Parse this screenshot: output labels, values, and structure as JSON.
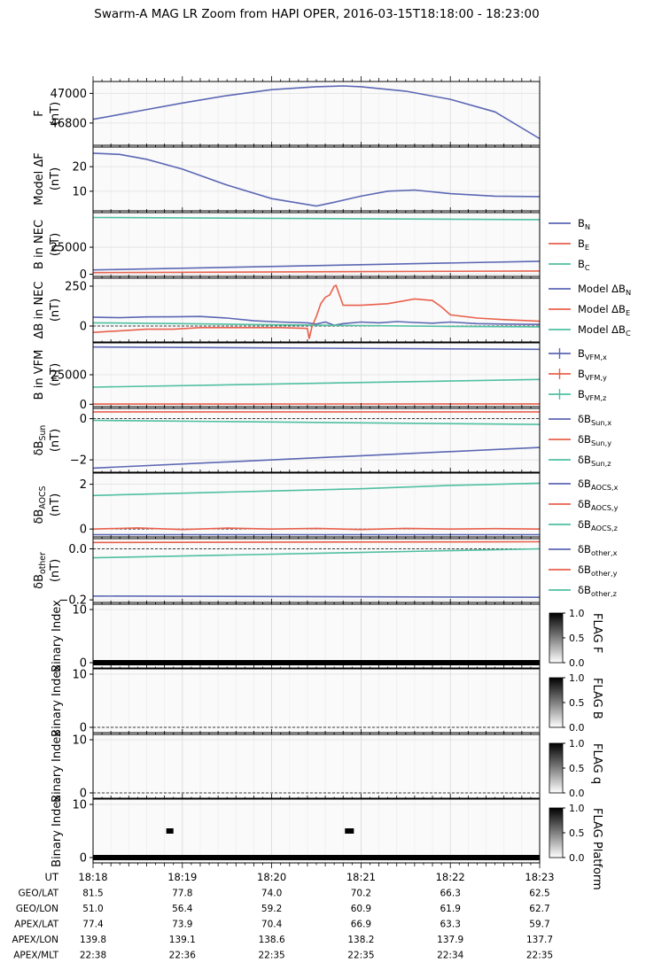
{
  "title": "Swarm-A MAG LR Zoom from HAPI OPER, 2016-03-15T18:18:00 - 18:23:00",
  "colors": {
    "blue": "#5b67b3",
    "red": "#e8604c",
    "teal": "#4fbfa0",
    "grid": "#dddddd"
  },
  "chart_data": [
    {
      "type": "line",
      "ylabel": [
        "F",
        "(nT)"
      ],
      "ylim": [
        46650,
        47080
      ],
      "yticks": [
        46800,
        47000
      ],
      "grid": true,
      "series": [
        {
          "color": "#5b67b3",
          "x": [
            0,
            0.5,
            1,
            1.5,
            2,
            2.5,
            2.8,
            3,
            3.5,
            4,
            4.5,
            5
          ],
          "y": [
            46825,
            46880,
            46935,
            46985,
            47025,
            47045,
            47050,
            47045,
            47015,
            46960,
            46875,
            46695
          ]
        }
      ]
    },
    {
      "type": "line",
      "ylabel": [
        "Model ΔF",
        "(nT)"
      ],
      "ylim": [
        2,
        28
      ],
      "yticks": [
        10,
        20
      ],
      "grid": true,
      "series": [
        {
          "color": "#5b67b3",
          "x": [
            0,
            0.3,
            0.6,
            1,
            1.5,
            2,
            2.5,
            2.7,
            3,
            3.3,
            3.6,
            4,
            4.5,
            5
          ],
          "y": [
            25.5,
            25,
            23,
            19,
            12.5,
            7,
            4,
            5.5,
            8,
            10,
            10.5,
            9,
            8,
            7.8
          ]
        }
      ]
    },
    {
      "type": "line",
      "ylabel": [
        "B in NEC",
        "(nT)"
      ],
      "ylim": [
        -2000,
        57000
      ],
      "yticks": [
        0,
        25000
      ],
      "grid": true,
      "legend": [
        "B_N",
        "B_E",
        "B_C"
      ],
      "series": [
        {
          "name": "B_N",
          "color": "#5b67b3",
          "x": [
            0,
            5
          ],
          "y": [
            4000,
            12000
          ]
        },
        {
          "name": "B_E",
          "color": "#e8604c",
          "x": [
            0,
            5
          ],
          "y": [
            1500,
            3000
          ]
        },
        {
          "name": "B_C",
          "color": "#4fbfa0",
          "x": [
            0,
            5
          ],
          "y": [
            52500,
            50500
          ]
        }
      ]
    },
    {
      "type": "line",
      "ylabel": [
        "ΔB in NEC",
        "(nT)"
      ],
      "ylim": [
        -100,
        300
      ],
      "yticks": [
        0,
        250
      ],
      "zero_line": true,
      "grid": true,
      "legend": [
        "Model ΔB_N",
        "Model ΔB_E",
        "Model ΔB_C"
      ],
      "series": [
        {
          "name": "Model ΔB_N",
          "color": "#5b67b3",
          "x": [
            0,
            0.3,
            0.6,
            0.9,
            1.2,
            1.5,
            1.8,
            2.1,
            2.4,
            2.5,
            2.6,
            2.7,
            2.8,
            3,
            3.2,
            3.4,
            3.6,
            3.8,
            4,
            4.3,
            4.6,
            5
          ],
          "y": [
            55,
            52,
            57,
            58,
            60,
            50,
            33,
            25,
            20,
            12,
            25,
            5,
            15,
            25,
            20,
            28,
            22,
            18,
            25,
            15,
            12,
            10
          ]
        },
        {
          "name": "Model ΔB_E",
          "color": "#e8604c",
          "x": [
            0,
            0.3,
            0.6,
            0.9,
            1.2,
            1.5,
            1.8,
            2.1,
            2.4,
            2.42,
            2.45,
            2.5,
            2.55,
            2.6,
            2.65,
            2.7,
            2.72,
            2.8,
            3,
            3.3,
            3.6,
            3.8,
            3.9,
            4,
            4.3,
            4.6,
            5
          ],
          "y": [
            -40,
            -30,
            -20,
            -20,
            -10,
            -10,
            -10,
            -10,
            -15,
            -80,
            -5,
            60,
            140,
            180,
            195,
            250,
            255,
            130,
            130,
            140,
            170,
            160,
            120,
            70,
            50,
            40,
            30
          ]
        },
        {
          "name": "Model ΔB_C",
          "color": "#4fbfa0",
          "x": [
            0,
            1,
            2,
            3,
            4,
            5
          ],
          "y": [
            20,
            15,
            8,
            3,
            -2,
            -5
          ]
        }
      ]
    },
    {
      "type": "line",
      "ylabel": [
        "B in VFM",
        "(nT)"
      ],
      "ylim": [
        -2000,
        52000
      ],
      "yticks": [
        0,
        25000
      ],
      "grid": true,
      "legend": [
        "B_VFM,x",
        "B_VFM,y",
        "B_VFM,z"
      ],
      "series": [
        {
          "name": "B_VFM,x",
          "color": "#5b67b3",
          "x": [
            0,
            5
          ],
          "y": [
            48500,
            46500
          ]
        },
        {
          "name": "B_VFM,y",
          "color": "#e8604c",
          "x": [
            0,
            5
          ],
          "y": [
            200,
            300
          ]
        },
        {
          "name": "B_VFM,z",
          "color": "#4fbfa0",
          "x": [
            0,
            5
          ],
          "y": [
            14500,
            21000
          ]
        }
      ]
    },
    {
      "type": "line",
      "ylabel": [
        "δB_Sun",
        "(nT)"
      ],
      "ylim": [
        -2.6,
        0.5
      ],
      "yticks": [
        -2,
        0
      ],
      "zero_line": true,
      "grid": true,
      "legend": [
        "δB_Sun,x",
        "δB_Sun,y",
        "δB_Sun,z"
      ],
      "series": [
        {
          "name": "δB_Sun,x",
          "color": "#5b67b3",
          "x": [
            0,
            5
          ],
          "y": [
            -2.4,
            -1.4
          ]
        },
        {
          "name": "δB_Sun,y",
          "color": "#e8604c",
          "x": [
            0,
            5
          ],
          "y": [
            0.33,
            0.33
          ]
        },
        {
          "name": "δB_Sun,z",
          "color": "#4fbfa0",
          "x": [
            0,
            5
          ],
          "y": [
            -0.08,
            -0.28
          ]
        }
      ]
    },
    {
      "type": "line",
      "ylabel": [
        "δB_AOCS",
        "(nT)"
      ],
      "ylim": [
        -0.35,
        2.5
      ],
      "yticks": [
        0,
        2
      ],
      "zero_line": true,
      "grid": true,
      "legend": [
        "δB_AOCS,x",
        "δB_AOCS,y",
        "δB_AOCS,z"
      ],
      "series": [
        {
          "name": "δB_AOCS,x",
          "color": "#5b67b3",
          "x": [
            0,
            5
          ],
          "y": [
            -0.25,
            -0.25
          ]
        },
        {
          "name": "δB_AOCS,y",
          "color": "#e8604c",
          "x": [
            0,
            0.5,
            1,
            1.5,
            2,
            2.5,
            3,
            3.5,
            4,
            4.5,
            5
          ],
          "y": [
            0,
            0.05,
            -0.02,
            0.04,
            0,
            0.03,
            -0.02,
            0.03,
            0,
            0.02,
            0
          ]
        },
        {
          "name": "δB_AOCS,z",
          "color": "#4fbfa0",
          "x": [
            0,
            1,
            2,
            3,
            4,
            5
          ],
          "y": [
            1.5,
            1.6,
            1.7,
            1.8,
            1.95,
            2.05
          ]
        }
      ]
    },
    {
      "type": "line",
      "ylabel": [
        "δB_other",
        "(nT)"
      ],
      "ylim": [
        -0.21,
        0.04
      ],
      "yticks": [
        -0.2,
        0.0
      ],
      "zero_line": true,
      "grid": true,
      "legend": [
        "δB_other,x",
        "δB_other,y",
        "δB_other,z"
      ],
      "series": [
        {
          "name": "δB_other,x",
          "color": "#5b67b3",
          "x": [
            0,
            5
          ],
          "y": [
            -0.185,
            -0.19
          ]
        },
        {
          "name": "δB_other,y",
          "color": "#e8604c",
          "x": [
            0,
            5
          ],
          "y": [
            0.025,
            0.028
          ]
        },
        {
          "name": "δB_other,z",
          "color": "#4fbfa0",
          "x": [
            0,
            5
          ],
          "y": [
            -0.035,
            0.0
          ]
        }
      ]
    },
    {
      "type": "heatmap",
      "ylabel": [
        "Binary Index"
      ],
      "ylim": [
        -1,
        11
      ],
      "yticks": [
        0,
        10
      ],
      "zero_line": true,
      "flag_label": "FLAG F",
      "colorbar_ticks": [
        "0.0",
        "0.5",
        "1.0"
      ],
      "blocks": [
        {
          "x0": 0,
          "x1": 5,
          "y0": -0.5,
          "y1": 0.5
        }
      ]
    },
    {
      "type": "heatmap",
      "ylabel": [
        "Binary Index"
      ],
      "ylim": [
        -1,
        11
      ],
      "yticks": [
        0,
        10
      ],
      "zero_line": true,
      "flag_label": "FLAG B",
      "colorbar_ticks": [
        "0.0",
        "0.5",
        "1.0"
      ],
      "blocks": []
    },
    {
      "type": "heatmap",
      "ylabel": [
        "Binary Index"
      ],
      "ylim": [
        -1,
        11
      ],
      "yticks": [
        0,
        10
      ],
      "zero_line": true,
      "flag_label": "FLAG q",
      "colorbar_ticks": [
        "0.0",
        "0.5",
        "1.0"
      ],
      "blocks": []
    },
    {
      "type": "heatmap",
      "ylabel": [
        "Binary Index"
      ],
      "ylim": [
        -1,
        11
      ],
      "yticks": [
        0,
        10
      ],
      "zero_line": false,
      "flag_label": "FLAG Platform",
      "colorbar_ticks": [
        "0.0",
        "0.5",
        "1.0"
      ],
      "blocks": [
        {
          "x0": 0,
          "x1": 5,
          "y0": -0.5,
          "y1": 0.5
        },
        {
          "x0": 0.82,
          "x1": 0.9,
          "y0": 4.5,
          "y1": 5.5
        },
        {
          "x0": 2.82,
          "x1": 2.92,
          "y0": 4.5,
          "y1": 5.5
        }
      ]
    }
  ],
  "xaxis": {
    "rows": [
      {
        "label": "UT",
        "values": [
          "18:18",
          "18:19",
          "18:20",
          "18:21",
          "18:22",
          "18:23"
        ]
      },
      {
        "label": "GEO/LAT",
        "values": [
          "81.5",
          "77.8",
          "74.0",
          "70.2",
          "66.3",
          "62.5"
        ]
      },
      {
        "label": "GEO/LON",
        "values": [
          "51.0",
          "56.4",
          "59.2",
          "60.9",
          "61.9",
          "62.7"
        ]
      },
      {
        "label": "APEX/LAT",
        "values": [
          "77.4",
          "73.9",
          "70.4",
          "66.9",
          "63.3",
          "59.7"
        ]
      },
      {
        "label": "APEX/LON",
        "values": [
          "139.8",
          "139.1",
          "138.6",
          "138.2",
          "137.9",
          "137.7"
        ]
      },
      {
        "label": "APEX/MLT",
        "values": [
          "22:38",
          "22:36",
          "22:35",
          "22:35",
          "22:34",
          "22:35"
        ]
      }
    ]
  }
}
